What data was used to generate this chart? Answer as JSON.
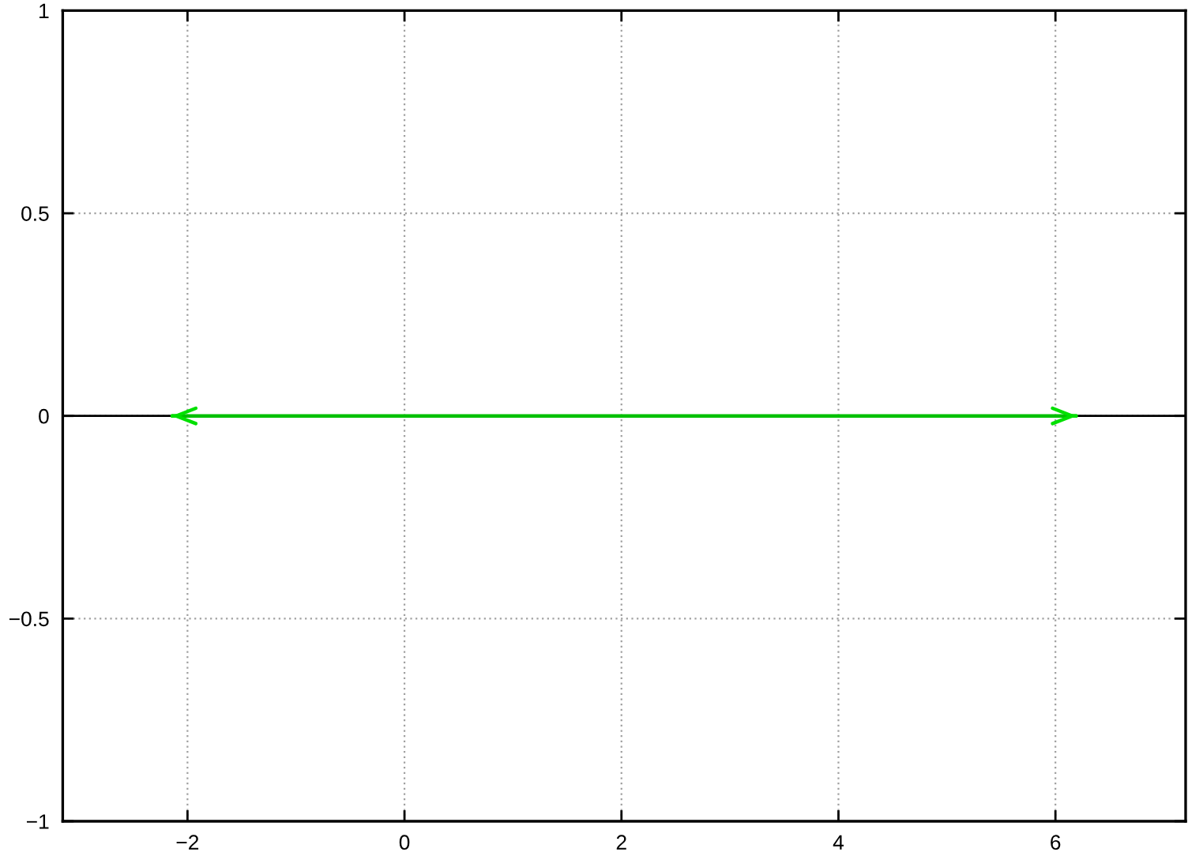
{
  "chart_data": {
    "type": "line",
    "x": [
      -2.15,
      6.2
    ],
    "series": [
      {
        "color": "#00c000",
        "values": [
          0,
          0
        ]
      }
    ],
    "xlim": [
      -3.15,
      7.2
    ],
    "ylim": [
      -1,
      1
    ],
    "xticks": [
      {
        "value": -2,
        "label": "−2"
      },
      0,
      2,
      4,
      6
    ],
    "yticks": [
      {
        "value": -1,
        "label": "−1"
      },
      {
        "value": -0.5,
        "label": "−0.5"
      },
      0,
      0.5,
      1
    ],
    "grid": true,
    "line_style": "solid",
    "ref_lines": [
      {
        "axis": "y",
        "value": 0,
        "color": "#000000"
      }
    ]
  }
}
